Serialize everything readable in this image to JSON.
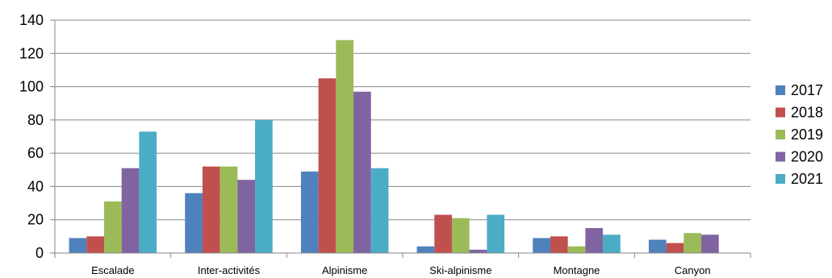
{
  "chart_data": {
    "type": "bar",
    "categories": [
      "Escalade",
      "Inter-activités",
      "Alpinisme",
      "Ski-alpinisme",
      "Montagne",
      "Canyon"
    ],
    "series": [
      {
        "name": "2017",
        "color": "#4F81BD",
        "values": [
          9,
          36,
          49,
          4,
          9,
          8
        ]
      },
      {
        "name": "2018",
        "color": "#C0504D",
        "values": [
          10,
          52,
          105,
          23,
          10,
          6
        ]
      },
      {
        "name": "2019",
        "color": "#9BBB59",
        "values": [
          31,
          52,
          128,
          21,
          4,
          12
        ]
      },
      {
        "name": "2020",
        "color": "#8064A2",
        "values": [
          51,
          44,
          97,
          2,
          15,
          11
        ]
      },
      {
        "name": "2021",
        "color": "#4BACC6",
        "values": [
          73,
          80,
          51,
          23,
          11,
          null
        ]
      }
    ],
    "ylim": [
      0,
      140
    ],
    "yticks": [
      0,
      20,
      40,
      60,
      80,
      100,
      120,
      140
    ],
    "grid": true,
    "legend_position": "right",
    "title": "",
    "xlabel": "",
    "ylabel": ""
  }
}
